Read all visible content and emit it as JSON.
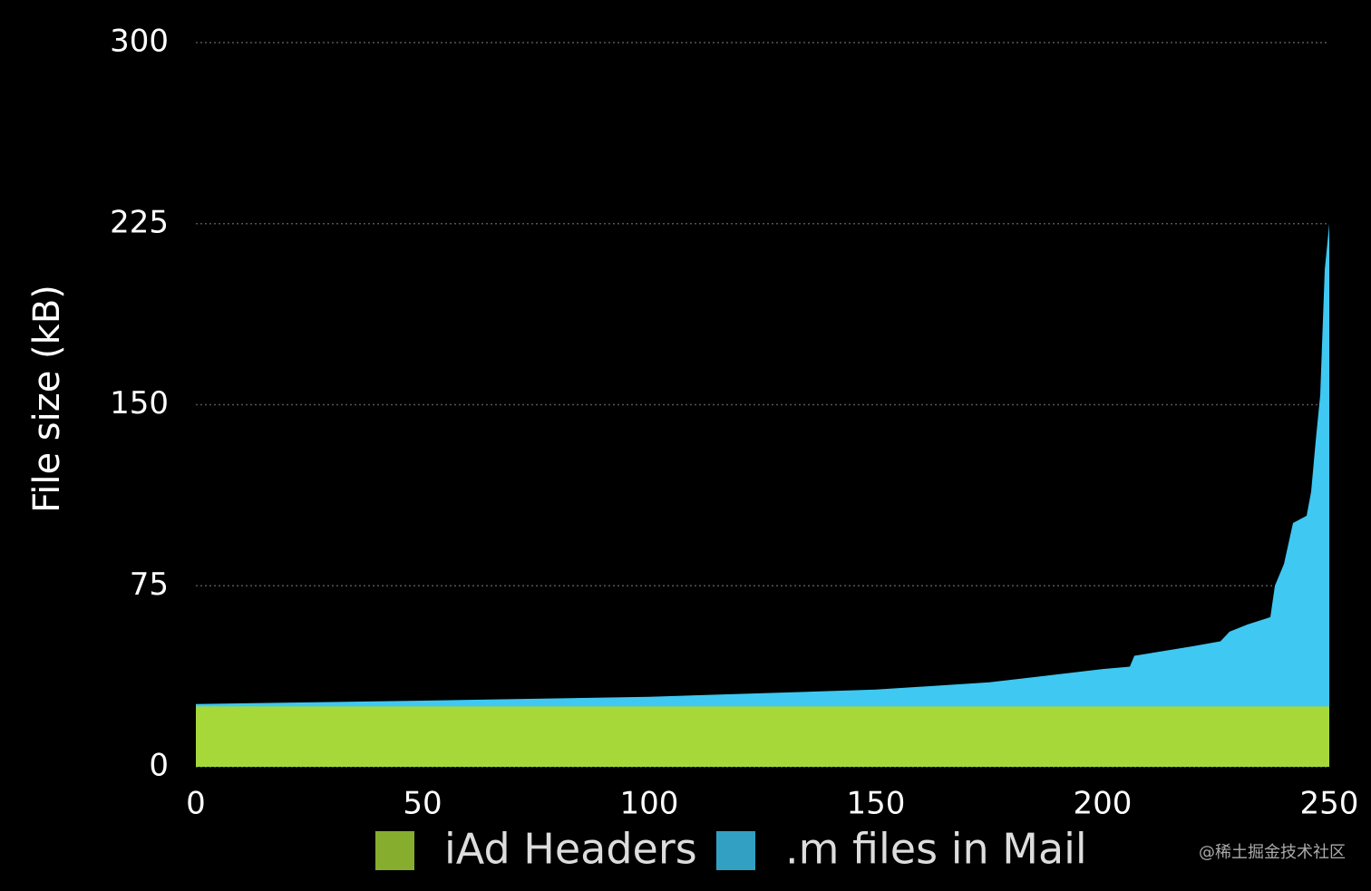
{
  "chart_data": {
    "type": "area",
    "y_label": "File size (kB)",
    "xlim": [
      0,
      250
    ],
    "xticks": [
      0,
      50,
      100,
      150,
      200,
      250
    ],
    "ylim": [
      0,
      300
    ],
    "yticks": [
      0,
      75,
      150,
      225,
      300
    ],
    "grid": true,
    "legend": "bottom",
    "series": [
      {
        "name": ".m files in Mail",
        "color": "#3ec8f2",
        "x": [
          0,
          50,
          100,
          150,
          175,
          200,
          206,
          207,
          220,
          226,
          228,
          232,
          237,
          238,
          240,
          242,
          245,
          246,
          247,
          248,
          249,
          250
        ],
        "values": [
          26,
          27.4,
          29,
          32,
          35,
          40.5,
          41.5,
          46,
          50,
          52,
          56,
          59,
          62,
          75,
          84,
          101,
          104,
          114,
          135,
          154,
          206,
          225
        ]
      },
      {
        "name": "iAd Headers",
        "color": "#a7d83a",
        "x": [
          0,
          250
        ],
        "values": [
          25,
          25
        ]
      }
    ],
    "watermark": "@稀土掘金技术社区"
  }
}
